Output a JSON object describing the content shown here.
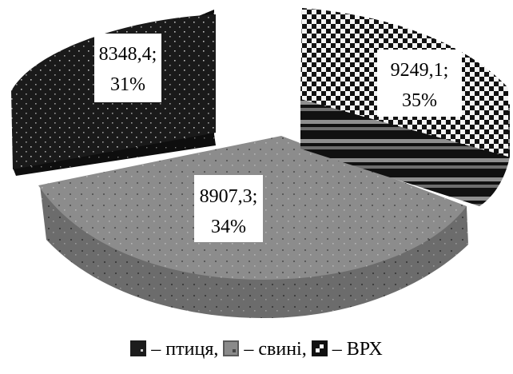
{
  "chart_data": {
    "type": "pie",
    "categories": [
      "птиця",
      "свині",
      "ВРХ"
    ],
    "values": [
      8348.4,
      8907.3,
      9249.1
    ],
    "percents": [
      31,
      34,
      35
    ],
    "data_labels": [
      [
        "8348,4;",
        "31%"
      ],
      [
        "8907,3;",
        "34%"
      ],
      [
        "9249,1;",
        "35%"
      ]
    ],
    "legend": {
      "position": "bottom",
      "items": [
        {
          "name": "птиця",
          "pattern": "dark-dotted"
        },
        {
          "name": "свині",
          "pattern": "grey-dotted"
        },
        {
          "name": "ВРХ",
          "pattern": "checkerboard"
        }
      ]
    },
    "colors": {
      "птиця": "#1c1c1c",
      "свині": "#8a8a8a",
      "ВРХ": "#111111"
    },
    "exploded": true,
    "style": "3d"
  },
  "legend_text": {
    "dash": "–",
    "sep": ","
  }
}
